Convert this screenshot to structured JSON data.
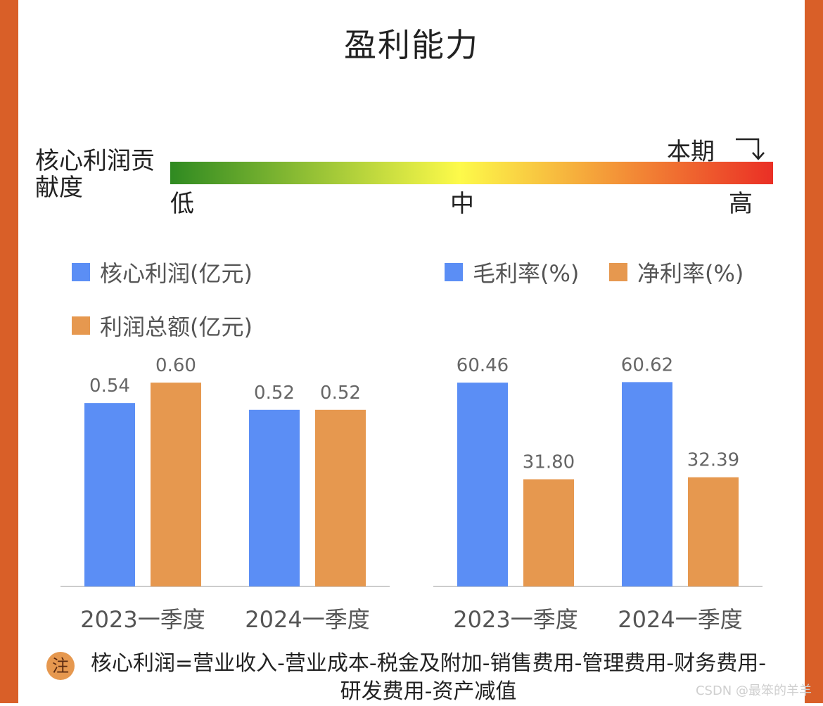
{
  "theme": {
    "border_color": "#d95f28",
    "blue": "#5b8ef5",
    "orange": "#e6984f",
    "gradient_low": "#2f8a21",
    "gradient_mid": "#fdfa4a",
    "gradient_high": "#ea2f25",
    "axis_color": "#cccccc",
    "label_color": "#666666"
  },
  "title": "盈利能力",
  "contribution": {
    "label": "核心利润贡献度",
    "low": "低",
    "mid": "中",
    "high": "高",
    "current_label": "本期",
    "current_level": 1.0
  },
  "note": {
    "badge": "注",
    "text": "核心利润=营业收入-营业成本-税金及附加-销售费用-管理费用-财务费用-研发费用-资产减值"
  },
  "watermark": "CSDN @最笨的羊羊",
  "chart_data": [
    {
      "type": "bar",
      "categories": [
        "2023一季度",
        "2024一季度"
      ],
      "series": [
        {
          "name": "核心利润(亿元)",
          "values": [
            0.54,
            0.52
          ],
          "labels": [
            "0.54",
            "0.52"
          ]
        },
        {
          "name": "利润总额(亿元)",
          "values": [
            0.6,
            0.52
          ],
          "labels": [
            "0.60",
            "0.52"
          ]
        }
      ],
      "ylim": [
        0,
        0.65
      ],
      "legend": "top-left"
    },
    {
      "type": "bar",
      "categories": [
        "2023一季度",
        "2024一季度"
      ],
      "series": [
        {
          "name": "毛利率(%)",
          "values": [
            60.46,
            60.62
          ],
          "labels": [
            "60.46",
            "60.62"
          ]
        },
        {
          "name": "净利率(%)",
          "values": [
            31.8,
            32.39
          ],
          "labels": [
            "31.80",
            "32.39"
          ]
        }
      ],
      "ylim": [
        0,
        65.5
      ],
      "legend": "top"
    }
  ]
}
